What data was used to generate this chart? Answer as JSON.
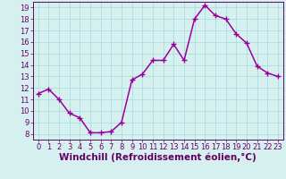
{
  "x": [
    0,
    1,
    2,
    3,
    4,
    5,
    6,
    7,
    8,
    9,
    10,
    11,
    12,
    13,
    14,
    15,
    16,
    17,
    18,
    19,
    20,
    21,
    22,
    23
  ],
  "y": [
    11.5,
    11.9,
    11.0,
    9.8,
    9.4,
    8.1,
    8.1,
    8.2,
    9.0,
    12.7,
    13.2,
    14.4,
    14.4,
    15.8,
    14.4,
    18.0,
    19.2,
    18.3,
    18.0,
    16.7,
    15.9,
    13.9,
    13.3,
    13.0
  ],
  "line_color": "#990099",
  "marker": "+",
  "marker_size": 4,
  "background_color": "#d6f0f0",
  "grid_color": "#aadddd",
  "xlabel": "Windchill (Refroidissement éolien,°C)",
  "xlabel_fontsize": 7.5,
  "xlim": [
    -0.5,
    23.5
  ],
  "ylim": [
    7.5,
    19.5
  ],
  "yticks": [
    8,
    9,
    10,
    11,
    12,
    13,
    14,
    15,
    16,
    17,
    18,
    19
  ],
  "xticks": [
    0,
    1,
    2,
    3,
    4,
    5,
    6,
    7,
    8,
    9,
    10,
    11,
    12,
    13,
    14,
    15,
    16,
    17,
    18,
    19,
    20,
    21,
    22,
    23
  ],
  "tick_fontsize": 6,
  "axis_color": "#660066",
  "border_color": "#660066",
  "line_width": 1.1
}
